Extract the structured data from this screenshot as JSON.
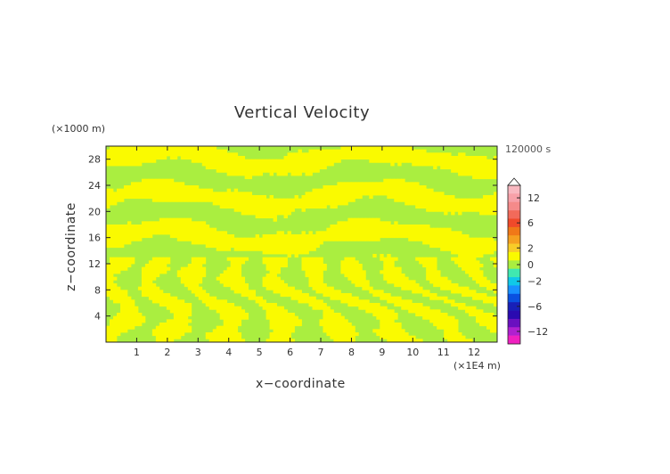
{
  "chart_data": {
    "type": "heatmap",
    "title": "Vertical Velocity",
    "xlabel": "x−coordinate",
    "ylabel": "z−coordinate",
    "x_unit_label": "(×1E4 m)",
    "z_unit_label": "(×1000 m)",
    "time_label": "120000 s",
    "xlim": [
      0,
      12.75
    ],
    "ylim": [
      0,
      30
    ],
    "x_ticks": [
      "1",
      "2",
      "3",
      "4",
      "5",
      "6",
      "7",
      "8",
      "9",
      "10",
      "11",
      "12"
    ],
    "y_ticks": [
      "4",
      "8",
      "12",
      "16",
      "20",
      "24",
      "28"
    ],
    "colorbar": {
      "tick_labels": [
        "12",
        "6",
        "2",
        "0",
        "−2",
        "−6",
        "−12"
      ],
      "levels": [
        14,
        12,
        10,
        8,
        6,
        4,
        3,
        2,
        1,
        0,
        -1,
        -2,
        -3,
        -4,
        -6,
        -8,
        -10,
        -12,
        -14
      ],
      "colors": [
        "#f8b8c0",
        "#f7a0a8",
        "#f58a8a",
        "#f26a5a",
        "#f04a2a",
        "#f07818",
        "#f5a020",
        "#f8cc28",
        "#fafa00",
        "#aaee40",
        "#40e8b0",
        "#10c8e8",
        "#1890ff",
        "#0a50e0",
        "#1820b8",
        "#2a0ab0",
        "#6a10c0",
        "#b020d0",
        "#f020c0"
      ],
      "extend_top_triangle": true
    },
    "dominant_values": "field mostly between −1 and 1 (yellow for 0 to 1, green for −1 to 0)",
    "colors": {
      "positive_small": "#fafa00",
      "negative_small": "#aaee40"
    }
  }
}
